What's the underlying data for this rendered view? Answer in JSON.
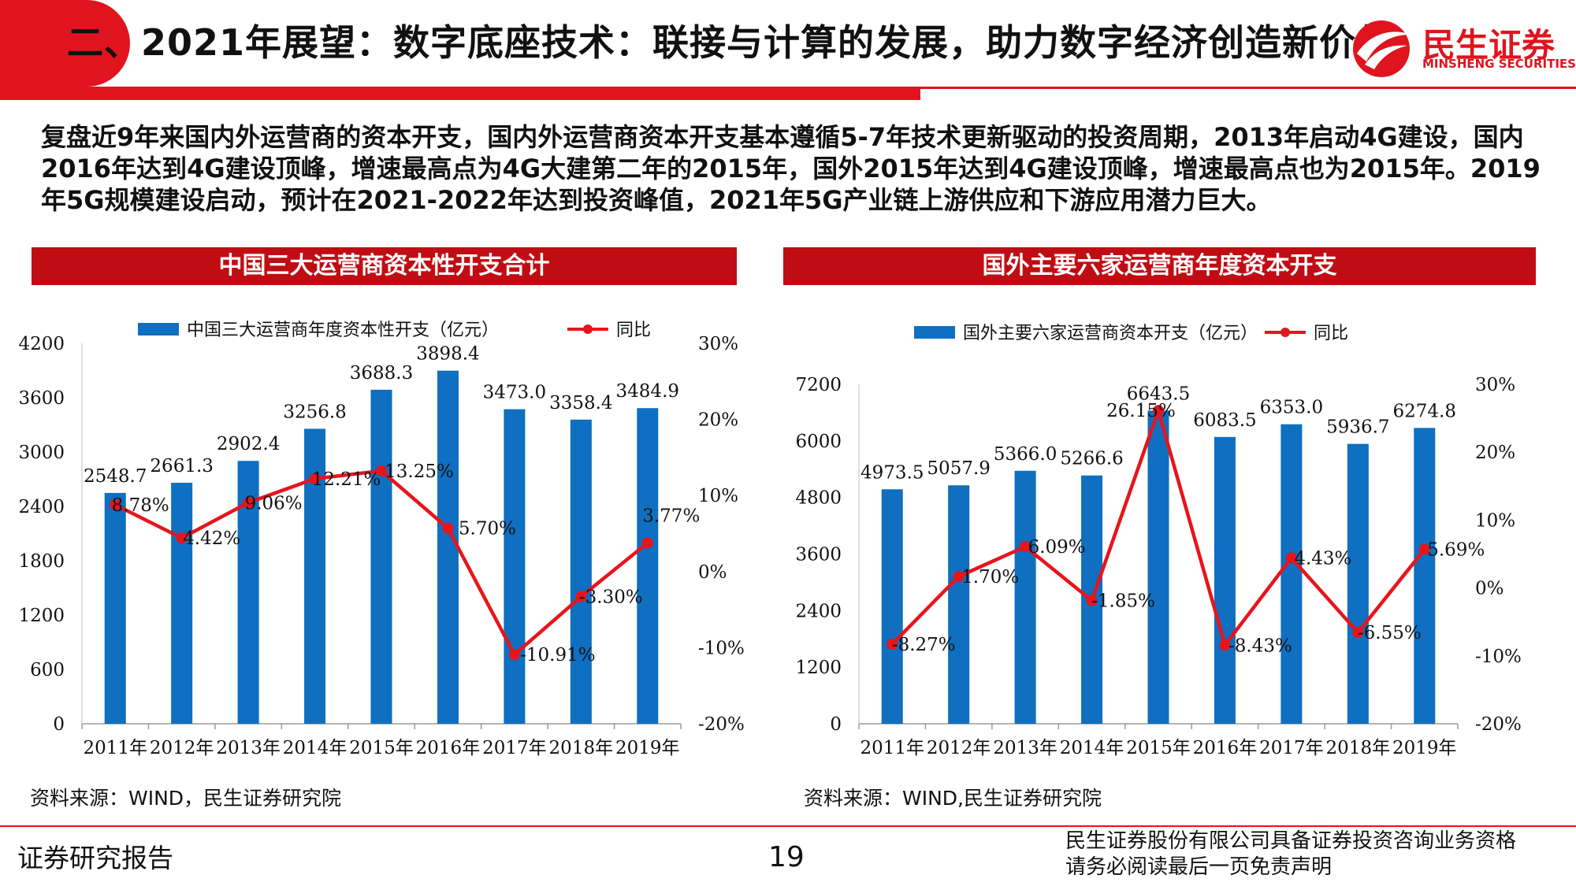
{
  "header": {
    "title": "二、2021年展望：数字底座技术：联接与计算的发展，助力数字经济创造新价值",
    "logo_text": "民生证券",
    "logo_sub": "MINSHENG SECURITIES"
  },
  "intro": "复盘近9年来国内外运营商的资本开支，国内外运营商资本开支基本遵循5-7年技术更新驱动的投资周期，2013年启动4G建设，国内2016年达到4G建设顶峰，增速最高点为4G大建第二年的2015年，国外2015年达到4G建设顶峰，增速最高点也为2015年。2019年5G规模建设启动，预计在2021-2022年达到投资峰值，2021年5G产业链上游供应和下游应用潜力巨大。",
  "panels": {
    "left_title": "中国三大运营商资本性开支合计",
    "right_title": "国外主要六家运营商年度资本开支",
    "left_source": "资料来源：WIND，民生证券研究院",
    "right_source": "资料来源：WIND,民生证券研究院"
  },
  "footer": {
    "left": "证券研究报告",
    "page": "19",
    "right_line1": "民生证券股份有限公司具备证券投资咨询业务资格",
    "right_line2": "请务必阅读最后一页免责声明"
  },
  "colors": {
    "brand_red": "#e0141e",
    "bar_blue": "#0f6fc0",
    "line_red": "#e8141c"
  },
  "chart_data": [
    {
      "type": "bar",
      "categories": [
        "2011年",
        "2012年",
        "2013年",
        "2014年",
        "2015年",
        "2016年",
        "2017年",
        "2018年",
        "2019年"
      ],
      "series": [
        {
          "name": "中国三大运营商年度资本性开支（亿元）",
          "type": "bar",
          "axis": "left",
          "values": [
            2548.7,
            2661.3,
            2902.4,
            3256.8,
            3688.3,
            3898.4,
            3473.0,
            3358.4,
            3484.9
          ],
          "labels": [
            "2548.7",
            "2661.3",
            "2902.4",
            "3256.8",
            "3688.3",
            "3898.4",
            "3473.0",
            "3358.4",
            "3484.9"
          ]
        },
        {
          "name": "同比",
          "type": "line",
          "axis": "right",
          "values": [
            8.78,
            4.42,
            9.06,
            12.21,
            13.25,
            5.7,
            -10.91,
            -3.3,
            3.77
          ],
          "labels": [
            "8.78%",
            "4.42%",
            "9.06%",
            "12.21%",
            "13.25%",
            "5.70%",
            "-10.91%",
            "-3.30%",
            "3.77%"
          ]
        }
      ],
      "ylim": [
        0,
        4200
      ],
      "yticks": [
        "0",
        "600",
        "1200",
        "1800",
        "2400",
        "3000",
        "3600",
        "4200"
      ],
      "y2lim": [
        -20,
        30
      ],
      "y2ticks": [
        "-20%",
        "-10%",
        "0%",
        "10%",
        "20%",
        "30%"
      ],
      "legend": "top"
    },
    {
      "type": "bar",
      "categories": [
        "2011年",
        "2012年",
        "2013年",
        "2014年",
        "2015年",
        "2016年",
        "2017年",
        "2018年",
        "2019年"
      ],
      "series": [
        {
          "name": "国外主要六家运营商资本开支（亿元）",
          "type": "bar",
          "axis": "left",
          "values": [
            4973.5,
            5057.9,
            5366.0,
            5266.6,
            6643.5,
            6083.5,
            6353.0,
            5936.7,
            6274.8
          ],
          "labels": [
            "4973.5",
            "5057.9",
            "5366.0",
            "5266.6",
            "6643.5",
            "6083.5",
            "6353.0",
            "5936.7",
            "6274.8"
          ]
        },
        {
          "name": "同比",
          "type": "line",
          "axis": "right",
          "values": [
            -8.27,
            1.7,
            6.09,
            -1.85,
            26.15,
            -8.43,
            4.43,
            -6.55,
            5.69
          ],
          "labels": [
            "-8.27%",
            "1.70%",
            "6.09%",
            "-1.85%",
            "26.15%",
            "-8.43%",
            "4.43%",
            "-6.55%",
            "5.69%"
          ]
        }
      ],
      "ylim": [
        0,
        7200
      ],
      "yticks": [
        "0",
        "1200",
        "2400",
        "3600",
        "4800",
        "6000",
        "7200"
      ],
      "y2lim": [
        -20,
        30
      ],
      "y2ticks": [
        "-20%",
        "-10%",
        "0%",
        "10%",
        "20%",
        "30%"
      ],
      "legend": "top"
    }
  ]
}
